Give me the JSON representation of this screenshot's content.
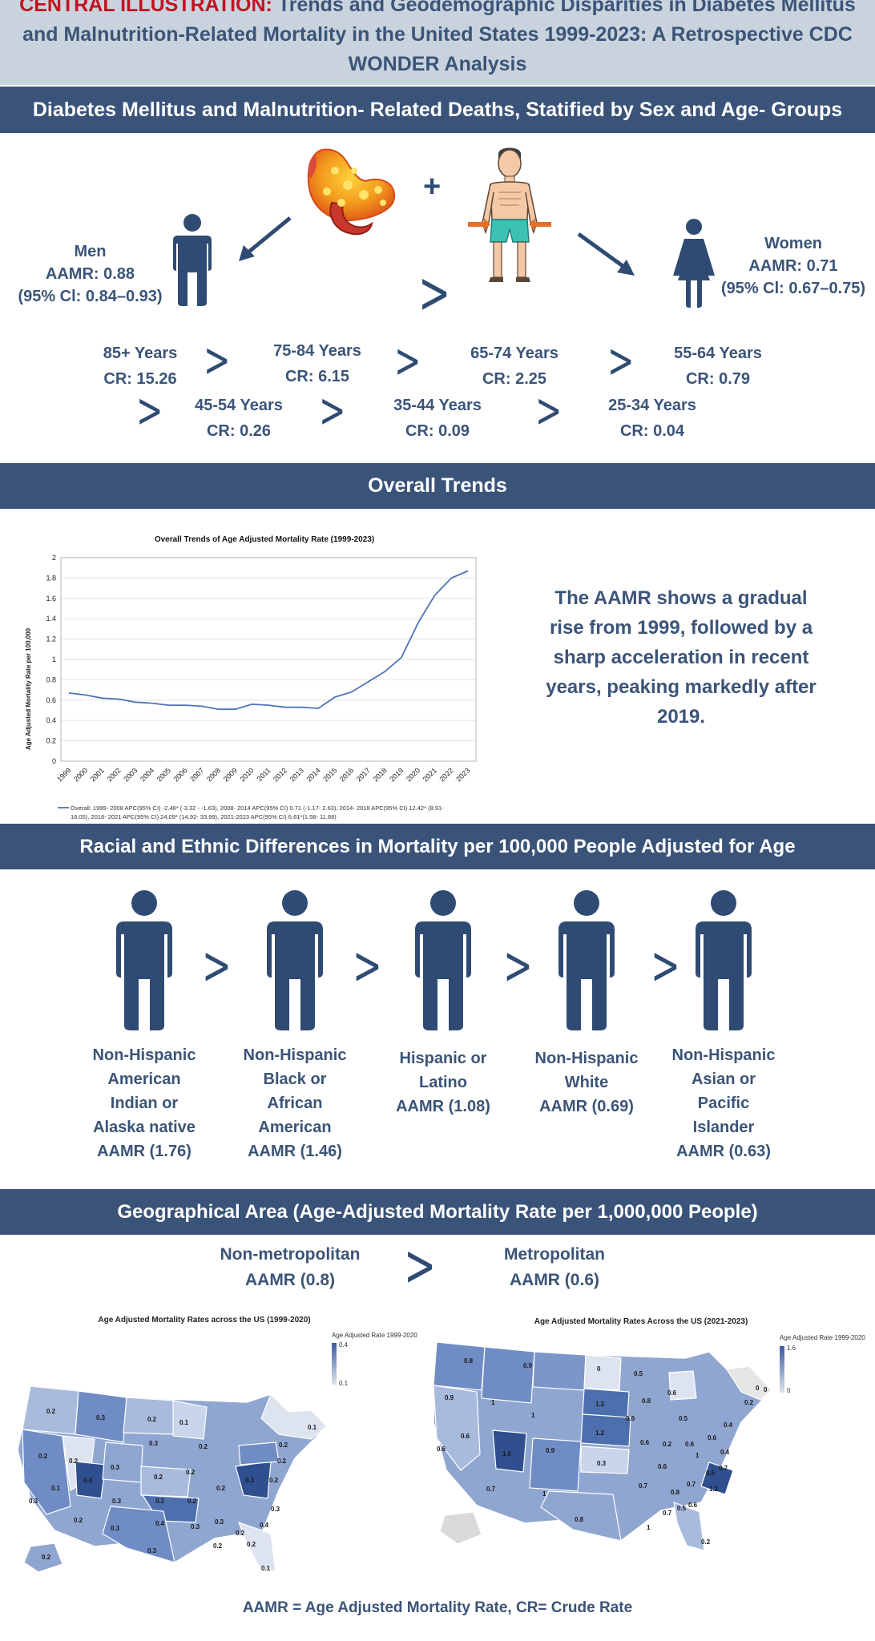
{
  "header": {
    "title_prefix": "CENTRAL ILLUSTRATION:",
    "title_main": "Trends and Geodemographic Disparities in Diabetes Mellitus and Malnutrition-Related Mortality in the United States 1999-2023: A Retrospective CDC WONDER Analysis"
  },
  "section_sex_age": {
    "banner": "Diabetes Mellitus and Malnutrition- Related Deaths, Statified by Sex and Age- Groups",
    "men": {
      "label": "Men",
      "aamr": "AAMR: 0.88",
      "ci": "(95% Cl: 0.84–0.93)"
    },
    "women": {
      "label": "Women",
      "aamr": "AAMR: 0.71",
      "ci": "(95% Cl: 0.67–0.75)"
    },
    "plus": "+",
    "gt": ">",
    "age_groups": [
      {
        "age": "85+ Years",
        "cr": "CR: 15.26"
      },
      {
        "age": "75-84 Years",
        "cr": "CR: 6.15"
      },
      {
        "age": "65-74 Years",
        "cr": "CR: 2.25"
      },
      {
        "age": "55-64 Years",
        "cr": "CR: 0.79"
      },
      {
        "age": "45-54 Years",
        "cr": "CR: 0.26"
      },
      {
        "age": "35-44 Years",
        "cr": "CR: 0.09"
      },
      {
        "age": "25-34 Years",
        "cr": "CR: 0.04"
      }
    ],
    "colors": {
      "accent": "#3a5379",
      "figure": "#2f4b73",
      "title_red": "#c1121f"
    }
  },
  "section_trends": {
    "banner": "Overall Trends",
    "description": "The AAMR shows a gradual rise from 1999, followed by a sharp acceleration in recent years, peaking markedly after 2019."
  },
  "chart_data": {
    "type": "line",
    "title": "Overall Trends of Age Adjusted Mortality Rate (1999-2023)",
    "xlabel": "",
    "ylabel": "Age Adjusted Mortality Rate per 100,000",
    "x": [
      "1999",
      "2000",
      "2001",
      "2002",
      "2003",
      "2004",
      "2005",
      "2006",
      "2007",
      "2008",
      "2009",
      "2010",
      "2011",
      "2012",
      "2013",
      "2014",
      "2015",
      "2016",
      "2017",
      "2018",
      "2019",
      "2020",
      "2021",
      "2022",
      "2023"
    ],
    "series": [
      {
        "name": "Overall: 1999- 2008 APC(95% CI) -2.48* (-3.32 - -1.63), 2008- 2014 APC(95% CI) 0.71 (-1.17- 2.63), 2014- 2018 APC(95% CI) 12.42* (8.91- 16.05), 2018- 2021 APC(95% CI) 24.09* (14.92- 33.99), 2021-2023 APC(95% CI) 6.61*(1.58- 11.88)",
        "color": "#4f72b8",
        "values": [
          0.67,
          0.65,
          0.62,
          0.61,
          0.58,
          0.57,
          0.55,
          0.55,
          0.54,
          0.51,
          0.51,
          0.56,
          0.55,
          0.53,
          0.53,
          0.52,
          0.63,
          0.68,
          0.78,
          0.88,
          1.02,
          1.36,
          1.63,
          1.8,
          1.87
        ]
      }
    ],
    "ylim": [
      0,
      2
    ],
    "yticks": [
      "0",
      "0.2",
      "0.4",
      "0.6",
      "0.8",
      "1",
      "1.2",
      "1.4",
      "1.6",
      "1.8",
      "2"
    ],
    "grid": true,
    "legend": "bottom"
  },
  "section_race": {
    "banner": "Racial and Ethnic Differences in Mortality per 100,000 People Adjusted for Age",
    "gt": ">",
    "groups": [
      {
        "lines": [
          "Non-Hispanic",
          "American",
          "Indian or",
          "Alaska native",
          "AAMR (1.76)"
        ]
      },
      {
        "lines": [
          "Non-Hispanic",
          "Black or",
          "African",
          "American",
          "AAMR (1.46)"
        ]
      },
      {
        "lines": [
          "Hispanic or",
          "Latino",
          "AAMR (1.08)"
        ]
      },
      {
        "lines": [
          "Non-Hispanic",
          "White",
          "AAMR (0.69)"
        ]
      },
      {
        "lines": [
          "Non-Hispanic",
          "Asian or",
          "Pacific",
          "Islander",
          "AAMR (0.63)"
        ]
      }
    ]
  },
  "section_geo": {
    "banner": "Geographical Area (Age-Adjusted Mortality Rate per 1,000,000 People)",
    "nonmetro": {
      "label": "Non-metropolitan",
      "aamr": "AAMR (0.8)"
    },
    "metro": {
      "label": "Metropolitan",
      "aamr": "AAMR (0.6)"
    },
    "gt": ">",
    "map1": {
      "title": "Age Adjusted Mortality Rates across the US (1999-2020)",
      "legend_title": "Age Adjusted Rate 1999-2020",
      "legend_max": "0.4",
      "legend_min": "0.1"
    },
    "map2": {
      "title": "Age Adjusted Mortality Rates Across the US (2021-2023)",
      "legend_title": "Age Adjusted Rate 1999-2020",
      "legend_max": "1.6",
      "legend_min": "0"
    }
  },
  "footer": {
    "text": "AAMR = Age Adjusted Mortality Rate, CR= Crude Rate"
  }
}
